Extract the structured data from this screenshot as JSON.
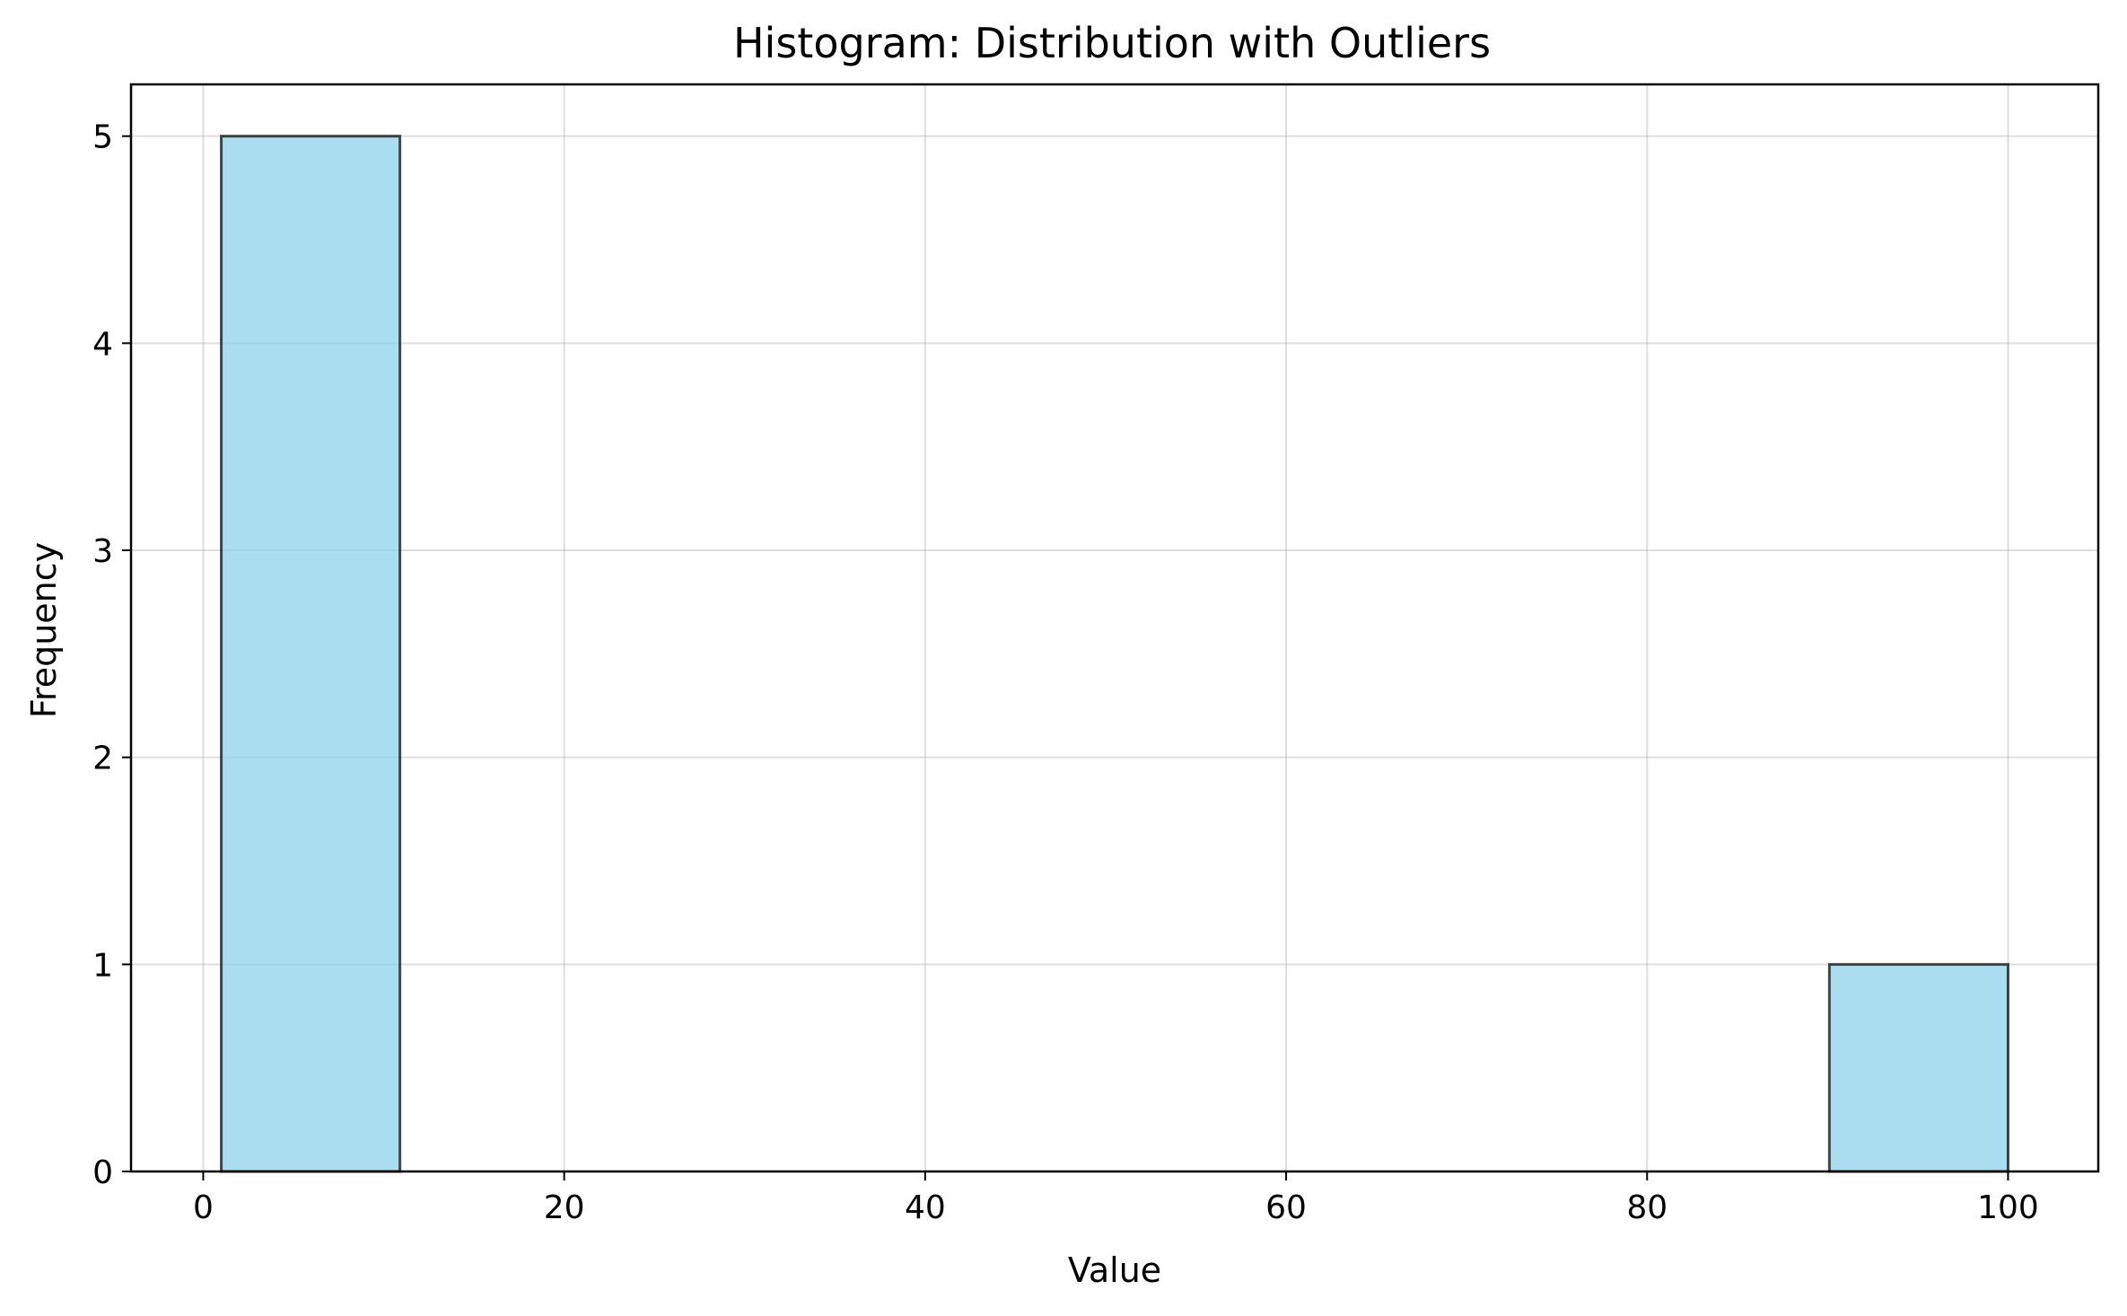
{
  "chart_data": {
    "type": "bar",
    "title": "Histogram: Distribution with Outliers",
    "xlabel": "Value",
    "ylabel": "Frequency",
    "xlim": [
      -4,
      105
    ],
    "ylim": [
      0,
      5.25
    ],
    "xticks": [
      0,
      20,
      40,
      60,
      80,
      100
    ],
    "yticks": [
      0,
      1,
      2,
      3,
      4,
      5
    ],
    "grid": true,
    "bin_edges": [
      1,
      10.9,
      20.8,
      30.7,
      40.6,
      50.5,
      60.4,
      70.3,
      80.2,
      90.1,
      100
    ],
    "values": [
      5,
      0,
      0,
      0,
      0,
      0,
      0,
      0,
      0,
      1
    ],
    "colors": {
      "bar_fill": "#87ceeb",
      "bar_edge": "#000000"
    }
  }
}
